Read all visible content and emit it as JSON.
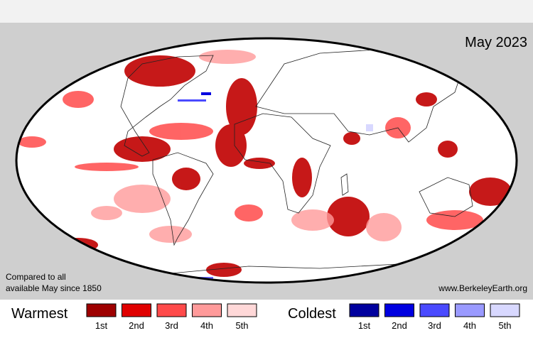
{
  "title": "May 2023",
  "note": [
    "Compared to all",
    "available May since 1850"
  ],
  "source": "www.BerkeleyEarth.org",
  "legend": {
    "warmest": {
      "label": "Warmest",
      "items": [
        {
          "rank": "1st",
          "color": "#9e0000"
        },
        {
          "rank": "2nd",
          "color": "#e00000"
        },
        {
          "rank": "3rd",
          "color": "#ff4a4a"
        },
        {
          "rank": "4th",
          "color": "#ff9a9a"
        },
        {
          "rank": "5th",
          "color": "#ffd8d8"
        }
      ]
    },
    "coldest": {
      "label": "Coldest",
      "items": [
        {
          "rank": "1st",
          "color": "#00009e"
        },
        {
          "rank": "2nd",
          "color": "#0000e0"
        },
        {
          "rank": "3rd",
          "color": "#4a4aff"
        },
        {
          "rank": "4th",
          "color": "#9a9aff"
        },
        {
          "rank": "5th",
          "color": "#d8d8ff"
        }
      ]
    }
  }
}
